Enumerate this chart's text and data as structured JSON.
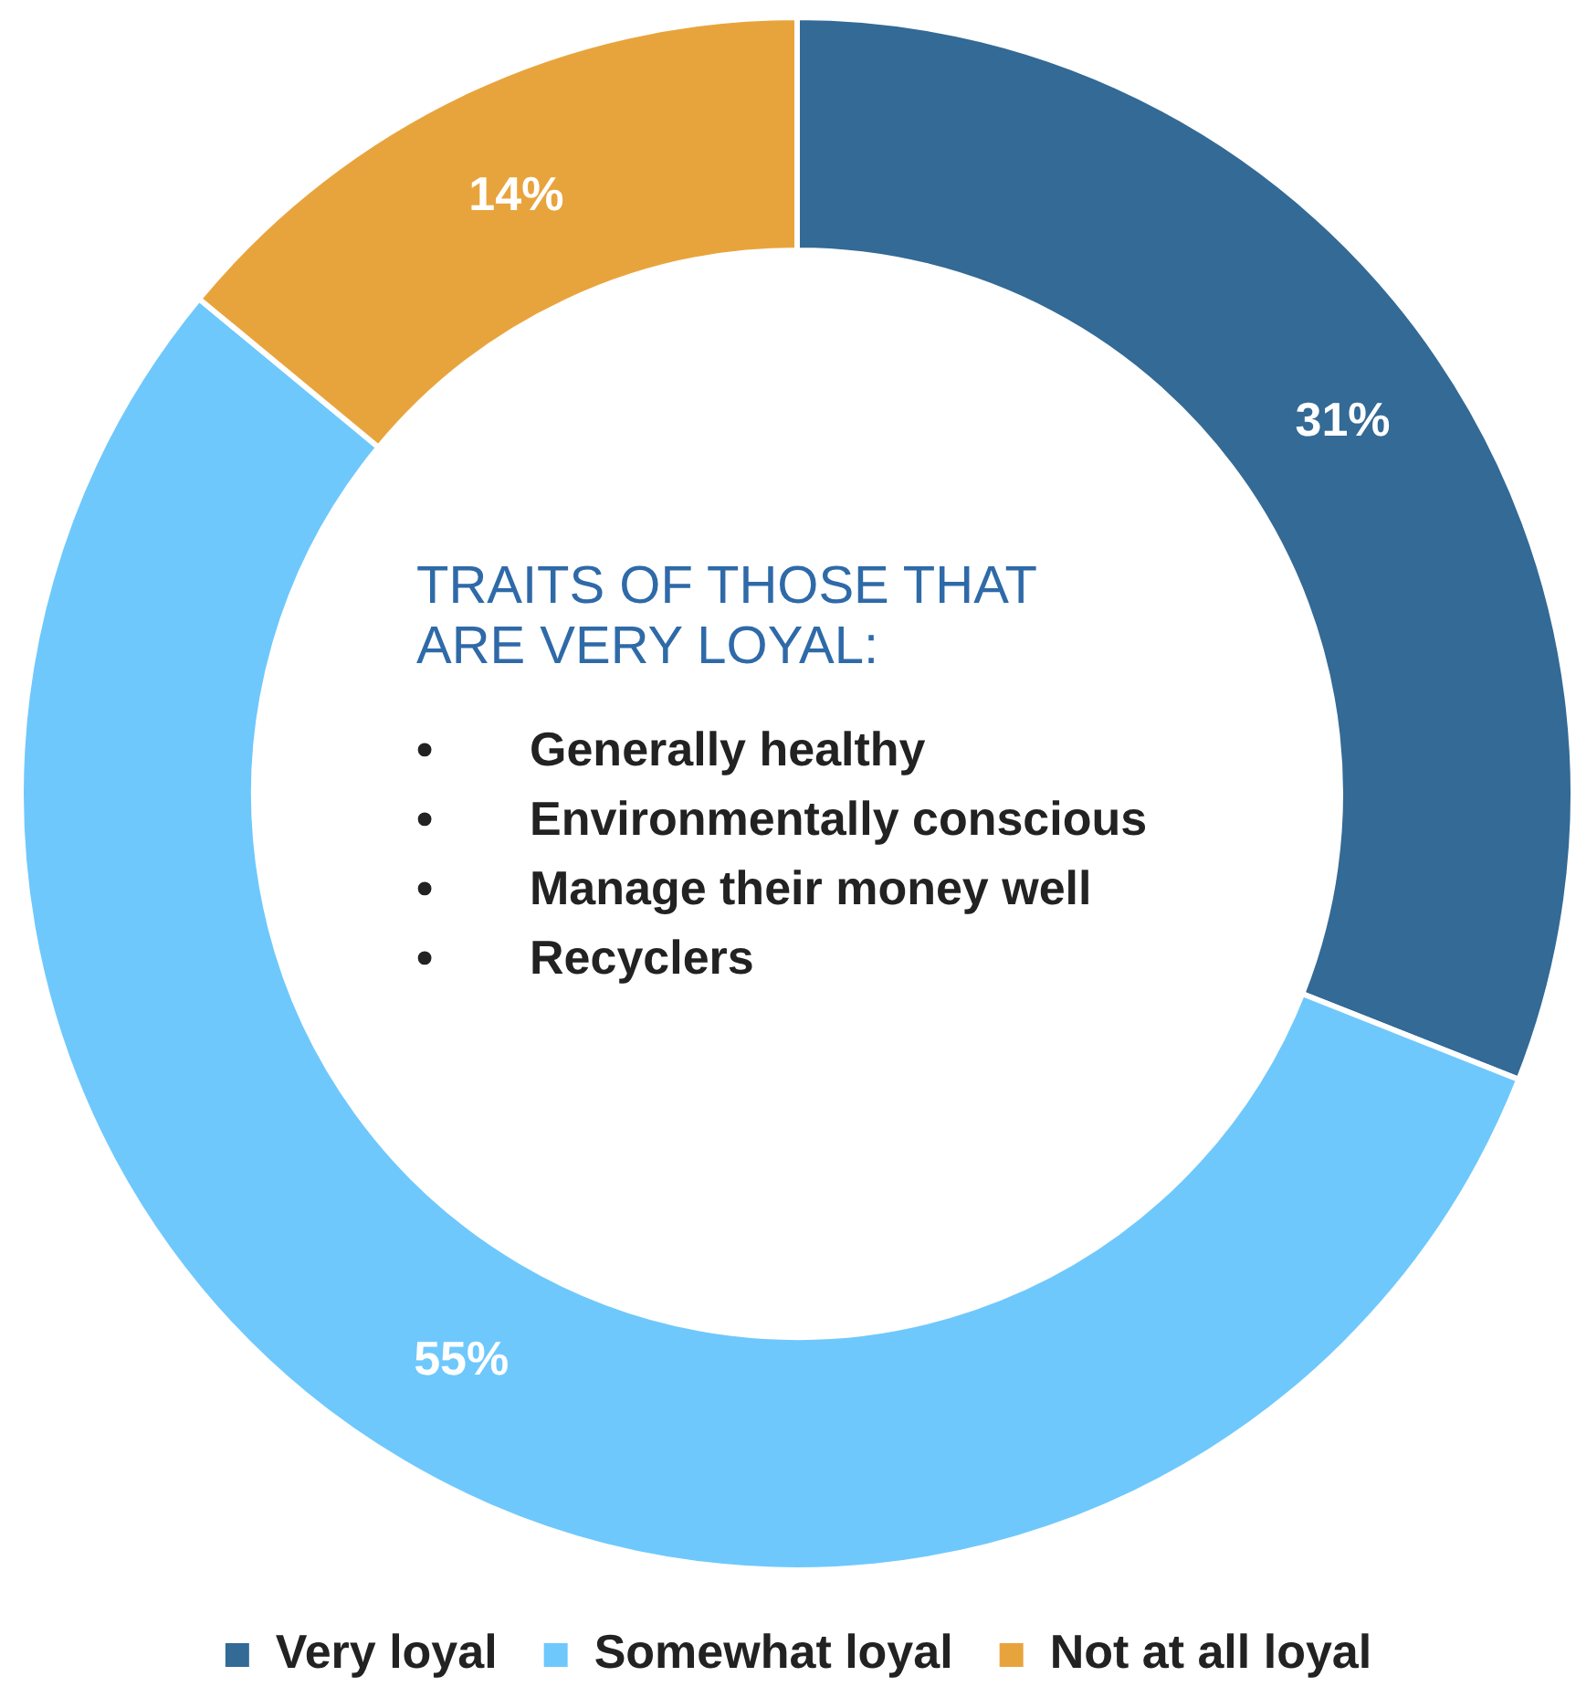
{
  "chart_data": {
    "type": "donut",
    "categories": [
      "Very loyal",
      "Somewhat loyal",
      "Not at all loyal"
    ],
    "values": [
      31,
      55,
      14
    ],
    "colors": [
      "#336a96",
      "#6ec8fc",
      "#e8a43c"
    ],
    "value_labels": [
      "31%",
      "55%",
      "14%"
    ],
    "legend": "bottom",
    "annotations": [
      "TRAITS OF THOSE THAT ARE VERY LOYAL:",
      "•\tGenerally healthy",
      "•\tEnvironmentally conscious",
      "•\tManage their money well",
      "•\tRecyclers"
    ]
  }
}
